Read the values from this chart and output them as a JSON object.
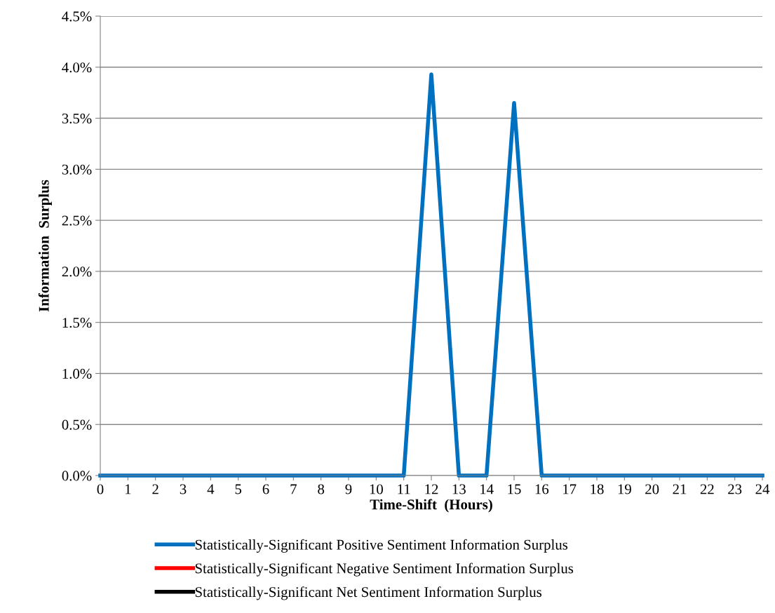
{
  "chart_data": {
    "type": "line",
    "xlabel": "Time-Shift  (Hours)",
    "ylabel": "Information  Surplus",
    "x": [
      0,
      1,
      2,
      3,
      4,
      5,
      6,
      7,
      8,
      9,
      10,
      11,
      12,
      13,
      14,
      15,
      16,
      17,
      18,
      19,
      20,
      21,
      22,
      23,
      24
    ],
    "series": [
      {
        "name": "Statistically-Significant Positive Sentiment Information Surplus",
        "color": "#0070c0",
        "values": [
          0,
          0,
          0,
          0,
          0,
          0,
          0,
          0,
          0,
          0,
          0,
          0,
          3.93,
          0,
          0,
          3.65,
          0,
          0,
          0,
          0,
          0,
          0,
          0,
          0,
          0
        ]
      },
      {
        "name": "Statistically-Significant Negative Sentiment Information Surplus",
        "color": "#ff0000",
        "values": [
          null,
          null,
          null,
          null,
          null,
          null,
          null,
          null,
          null,
          null,
          null,
          null,
          null,
          null,
          null,
          null,
          null,
          null,
          null,
          null,
          null,
          null,
          null,
          null,
          null
        ]
      },
      {
        "name": "Statistically-Significant Net Sentiment Information Surplus",
        "color": "#000000",
        "values": [
          null,
          null,
          null,
          null,
          null,
          null,
          null,
          null,
          null,
          null,
          null,
          null,
          null,
          null,
          null,
          null,
          null,
          null,
          null,
          null,
          null,
          null,
          null,
          null,
          null
        ]
      }
    ],
    "xlim": [
      0,
      24
    ],
    "xticks": [
      0,
      1,
      2,
      3,
      4,
      5,
      6,
      7,
      8,
      9,
      10,
      11,
      12,
      13,
      14,
      15,
      16,
      17,
      18,
      19,
      20,
      21,
      22,
      23,
      24
    ],
    "ylim": [
      0,
      4.5
    ],
    "yticks": [
      {
        "value": 0,
        "label": "0.0%"
      },
      {
        "value": 0.5,
        "label": "0.5%"
      },
      {
        "value": 1,
        "label": "1.0%"
      },
      {
        "value": 1.5,
        "label": "1.5%"
      },
      {
        "value": 2,
        "label": "2.0%"
      },
      {
        "value": 2.5,
        "label": "2.5%"
      },
      {
        "value": 3,
        "label": "3.0%"
      },
      {
        "value": 3.5,
        "label": "3.5%"
      },
      {
        "value": 4,
        "label": "4.0%"
      },
      {
        "value": 4.5,
        "label": "4.5%"
      }
    ],
    "grid": "y",
    "legend": "bottom",
    "marker": "none",
    "line_style": "solid"
  }
}
